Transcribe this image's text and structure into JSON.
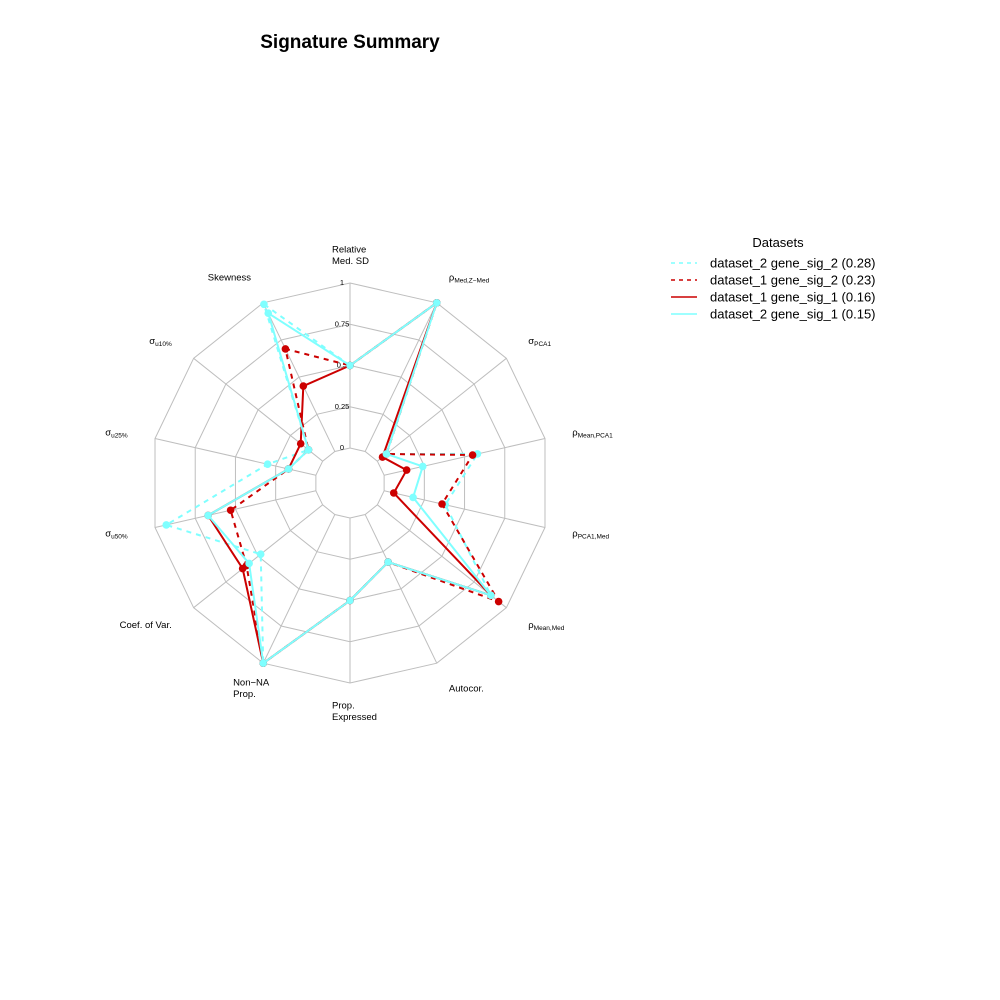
{
  "chart_data": {
    "type": "radar",
    "title": "Signature Summary",
    "r_ticks": [
      "0",
      "0.25",
      "0.5",
      "0.75",
      "1"
    ],
    "range": [
      0,
      1
    ],
    "axes": [
      {
        "lines": [
          "Relative",
          "Med. SD"
        ],
        "sym": "",
        "sub": ""
      },
      {
        "lines": [],
        "sym": "ρ",
        "sub": "Med,Z−Med"
      },
      {
        "lines": [],
        "sym": "σ",
        "sub": "PCA1"
      },
      {
        "lines": [],
        "sym": "ρ",
        "sub": "Mean,PCA1"
      },
      {
        "lines": [],
        "sym": "ρ",
        "sub": "PCA1,Med"
      },
      {
        "lines": [],
        "sym": "ρ",
        "sub": "Mean,Med"
      },
      {
        "lines": [
          "Autocor."
        ],
        "sym": "",
        "sub": ""
      },
      {
        "lines": [
          "Prop.",
          "Expressed"
        ],
        "sym": "",
        "sub": ""
      },
      {
        "lines": [
          "Non−NA",
          "Prop."
        ],
        "sym": "",
        "sub": ""
      },
      {
        "lines": [
          "Coef. of Var."
        ],
        "sym": "",
        "sub": ""
      },
      {
        "lines": [],
        "sym": "σ",
        "sub": "u50%"
      },
      {
        "lines": [],
        "sym": "σ",
        "sub": "u25%"
      },
      {
        "lines": [],
        "sym": "σ",
        "sub": "u10%"
      },
      {
        "lines": [
          "Skewness"
        ],
        "sym": "",
        "sub": ""
      }
    ],
    "series": [
      {
        "name": "dataset_2 gene_sig_2 (0.28)",
        "color": "#7FFFFF",
        "dash": "5,5",
        "values": [
          0.5,
          1.0,
          0.07,
          0.58,
          0.38,
          0.88,
          0.32,
          0.5,
          1.0,
          0.48,
          0.93,
          0.3,
          0.11,
          0.99
        ]
      },
      {
        "name": "dataset_1 gene_sig_2 (0.23)",
        "color": "#CC0000",
        "dash": "5,5",
        "values": [
          0.5,
          1.0,
          0.07,
          0.55,
          0.36,
          0.94,
          0.32,
          0.5,
          1.0,
          0.59,
          0.53,
          0.17,
          0.11,
          0.69
        ]
      },
      {
        "name": "dataset_1 gene_sig_1 (0.16)",
        "color": "#CC0000",
        "dash": "",
        "values": [
          0.5,
          1.0,
          0.04,
          0.14,
          0.06,
          0.88,
          0.32,
          0.5,
          1.0,
          0.62,
          0.67,
          0.17,
          0.17,
          0.44
        ]
      },
      {
        "name": "dataset_2 gene_sig_1 (0.15)",
        "color": "#7FFFFF",
        "dash": "",
        "values": [
          0.5,
          1.0,
          0.07,
          0.24,
          0.18,
          0.88,
          0.32,
          0.5,
          1.0,
          0.57,
          0.67,
          0.17,
          0.11,
          0.93
        ]
      }
    ],
    "legend": {
      "title": "Datasets",
      "position": "top-right"
    }
  }
}
